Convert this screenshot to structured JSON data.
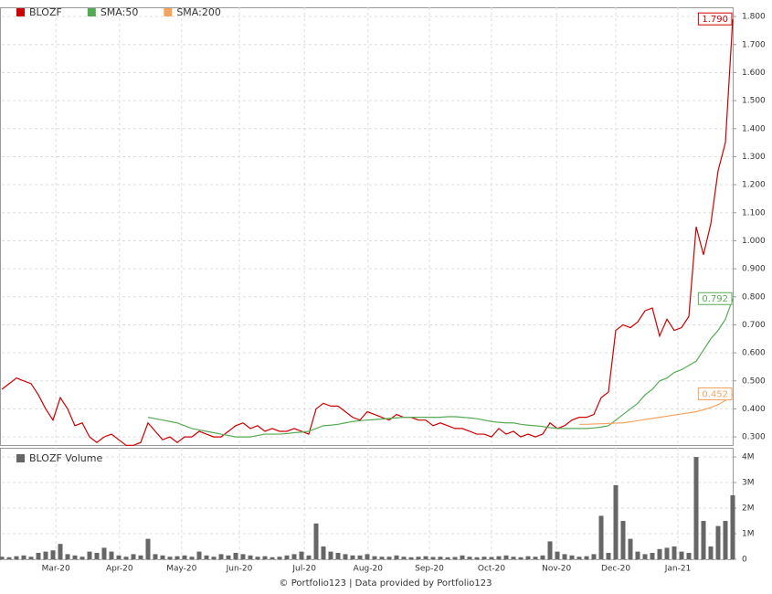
{
  "chart_data": [
    {
      "type": "line",
      "xlim": [
        0,
        100
      ],
      "ylim": [
        0.271,
        1.833
      ],
      "yticks": [
        {
          "value": 0.3,
          "label": "0.300"
        },
        {
          "value": 0.4,
          "label": "0.400"
        },
        {
          "value": 0.5,
          "label": "0.500"
        },
        {
          "value": 0.6,
          "label": "0.600"
        },
        {
          "value": 0.7,
          "label": "0.700"
        },
        {
          "value": 0.8,
          "label": "0.800"
        },
        {
          "value": 0.9,
          "label": "0.900"
        },
        {
          "value": 1.0,
          "label": "1.000"
        },
        {
          "value": 1.1,
          "label": "1.100"
        },
        {
          "value": 1.2,
          "label": "1.200"
        },
        {
          "value": 1.3,
          "label": "1.300"
        },
        {
          "value": 1.4,
          "label": "1.400"
        },
        {
          "value": 1.5,
          "label": "1.500"
        },
        {
          "value": 1.6,
          "label": "1.600"
        },
        {
          "value": 1.7,
          "label": "1.700"
        },
        {
          "value": 1.8,
          "label": "1.800"
        }
      ],
      "grid": true,
      "legend": "top-left",
      "series": [
        {
          "name": "BLOZF",
          "color": "#cc0000",
          "last_label": "1.790",
          "values": [
            0.47,
            0.49,
            0.51,
            0.5,
            0.49,
            0.45,
            0.4,
            0.36,
            0.44,
            0.4,
            0.34,
            0.35,
            0.3,
            0.28,
            0.3,
            0.31,
            0.29,
            0.27,
            0.27,
            0.28,
            0.35,
            0.32,
            0.29,
            0.3,
            0.28,
            0.3,
            0.3,
            0.32,
            0.31,
            0.3,
            0.3,
            0.32,
            0.34,
            0.35,
            0.33,
            0.34,
            0.32,
            0.33,
            0.32,
            0.32,
            0.33,
            0.32,
            0.31,
            0.4,
            0.42,
            0.41,
            0.41,
            0.39,
            0.37,
            0.36,
            0.39,
            0.38,
            0.37,
            0.36,
            0.38,
            0.37,
            0.37,
            0.36,
            0.36,
            0.34,
            0.35,
            0.34,
            0.33,
            0.33,
            0.32,
            0.31,
            0.31,
            0.3,
            0.33,
            0.31,
            0.32,
            0.3,
            0.31,
            0.3,
            0.31,
            0.35,
            0.33,
            0.34,
            0.36,
            0.37,
            0.37,
            0.38,
            0.44,
            0.46,
            0.68,
            0.7,
            0.69,
            0.71,
            0.75,
            0.76,
            0.66,
            0.72,
            0.68,
            0.69,
            0.73,
            1.05,
            0.95,
            1.06,
            1.25,
            1.35,
            1.79
          ]
        },
        {
          "name": "SMA:50",
          "color": "#55aa55",
          "last_label": "0.792",
          "values": [
            null,
            null,
            null,
            null,
            null,
            null,
            null,
            null,
            null,
            null,
            null,
            null,
            null,
            null,
            null,
            null,
            null,
            null,
            null,
            null,
            0.37,
            0.365,
            0.36,
            0.355,
            0.35,
            0.34,
            0.33,
            0.325,
            0.32,
            0.315,
            0.31,
            0.305,
            0.3,
            0.3,
            0.3,
            0.305,
            0.31,
            0.31,
            0.31,
            0.312,
            0.315,
            0.317,
            0.32,
            0.33,
            0.34,
            0.342,
            0.345,
            0.35,
            0.355,
            0.358,
            0.36,
            0.362,
            0.364,
            0.366,
            0.368,
            0.37,
            0.37,
            0.37,
            0.37,
            0.37,
            0.37,
            0.372,
            0.372,
            0.37,
            0.368,
            0.365,
            0.36,
            0.355,
            0.352,
            0.35,
            0.35,
            0.345,
            0.342,
            0.34,
            0.337,
            0.333,
            0.33,
            0.33,
            0.33,
            0.33,
            0.33,
            0.332,
            0.335,
            0.34,
            0.36,
            0.38,
            0.4,
            0.42,
            0.45,
            0.47,
            0.5,
            0.51,
            0.53,
            0.54,
            0.555,
            0.57,
            0.61,
            0.65,
            0.68,
            0.72,
            0.792
          ]
        },
        {
          "name": "SMA:200",
          "color": "#f4a460",
          "last_label": "0.452",
          "values": [
            null,
            null,
            null,
            null,
            null,
            null,
            null,
            null,
            null,
            null,
            null,
            null,
            null,
            null,
            null,
            null,
            null,
            null,
            null,
            null,
            null,
            null,
            null,
            null,
            null,
            null,
            null,
            null,
            null,
            null,
            null,
            null,
            null,
            null,
            null,
            null,
            null,
            null,
            null,
            null,
            null,
            null,
            null,
            null,
            null,
            null,
            null,
            null,
            null,
            null,
            null,
            null,
            null,
            null,
            null,
            null,
            null,
            null,
            null,
            null,
            null,
            null,
            null,
            null,
            null,
            null,
            null,
            null,
            null,
            null,
            null,
            null,
            null,
            null,
            null,
            null,
            null,
            null,
            null,
            0.345,
            0.345,
            0.346,
            0.347,
            0.348,
            0.349,
            0.35,
            0.354,
            0.358,
            0.362,
            0.366,
            0.37,
            0.374,
            0.378,
            0.382,
            0.386,
            0.39,
            0.397,
            0.405,
            0.415,
            0.43,
            0.452
          ]
        }
      ]
    },
    {
      "type": "bar",
      "xlim": [
        0,
        100
      ],
      "ylim": [
        0,
        4360000
      ],
      "yticks": [
        {
          "value": 0,
          "label": "0"
        },
        {
          "value": 1000000,
          "label": "1M"
        },
        {
          "value": 2000000,
          "label": "2M"
        },
        {
          "value": 3000000,
          "label": "3M"
        },
        {
          "value": 4000000,
          "label": "4M"
        }
      ],
      "xticks": [
        {
          "value": 7.4,
          "label": "Mar-20"
        },
        {
          "value": 16.1,
          "label": "Apr-20"
        },
        {
          "value": 24.6,
          "label": "May-20"
        },
        {
          "value": 32.5,
          "label": "Jun-20"
        },
        {
          "value": 41.4,
          "label": "Jul-20"
        },
        {
          "value": 50.1,
          "label": "Aug-20"
        },
        {
          "value": 58.5,
          "label": "Sep-20"
        },
        {
          "value": 67,
          "label": "Oct-20"
        },
        {
          "value": 75.9,
          "label": "Nov-20"
        },
        {
          "value": 84,
          "label": "Dec-20"
        },
        {
          "value": 92.5,
          "label": "Jan-21"
        }
      ],
      "grid": true,
      "series": [
        {
          "name": "BLOZF Volume",
          "color": "#666666",
          "values": [
            100000,
            80000,
            120000,
            150000,
            100000,
            250000,
            300000,
            350000,
            600000,
            200000,
            150000,
            100000,
            300000,
            250000,
            450000,
            300000,
            150000,
            100000,
            200000,
            150000,
            800000,
            200000,
            150000,
            100000,
            120000,
            150000,
            100000,
            300000,
            150000,
            100000,
            200000,
            150000,
            250000,
            200000,
            150000,
            100000,
            120000,
            80000,
            100000,
            150000,
            200000,
            300000,
            150000,
            1400000,
            500000,
            300000,
            250000,
            200000,
            150000,
            150000,
            200000,
            120000,
            100000,
            100000,
            150000,
            100000,
            80000,
            100000,
            120000,
            90000,
            100000,
            80000,
            90000,
            150000,
            100000,
            80000,
            100000,
            90000,
            120000,
            150000,
            100000,
            80000,
            120000,
            100000,
            150000,
            700000,
            300000,
            200000,
            150000,
            100000,
            120000,
            200000,
            1700000,
            250000,
            2900000,
            1500000,
            800000,
            300000,
            200000,
            250000,
            400000,
            450000,
            500000,
            300000,
            250000,
            4000000,
            1500000,
            500000,
            1300000,
            1500000,
            2500000
          ]
        }
      ]
    }
  ],
  "footer": "© Portfolio123 | Data provided by Portfolio123"
}
